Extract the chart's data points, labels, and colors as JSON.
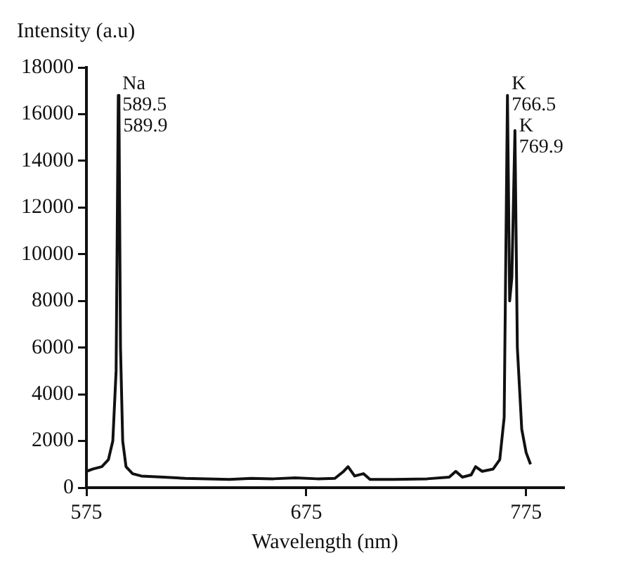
{
  "chart_data": {
    "type": "line",
    "xlabel": "Wavelength (nm)",
    "ylabel": "Intensity (a.u)",
    "series": [
      {
        "color": "#111111",
        "x": [
          575,
          578,
          582,
          585,
          587,
          588.5,
          589.5,
          589.7,
          589.9,
          590.5,
          591.5,
          593,
          596,
          600,
          610,
          620,
          630,
          640,
          650,
          660,
          670,
          680,
          688,
          692,
          694,
          697,
          701,
          704,
          715,
          730,
          740,
          743,
          746,
          750,
          752,
          755,
          760,
          763,
          765,
          766.5,
          767.5,
          768.5,
          769.9,
          771,
          773,
          775,
          777
        ],
        "values": [
          700,
          800,
          900,
          1200,
          2000,
          5000,
          16800,
          12000,
          16300,
          6000,
          2000,
          900,
          600,
          500,
          450,
          400,
          380,
          350,
          400,
          380,
          420,
          380,
          400,
          700,
          900,
          500,
          600,
          350,
          350,
          380,
          450,
          700,
          450,
          550,
          900,
          700,
          800,
          1200,
          3000,
          16800,
          8000,
          9000,
          15300,
          6000,
          2500,
          1500,
          1000
        ]
      }
    ],
    "xlim": [
      575,
      792
    ],
    "xticks": [
      575,
      675,
      775
    ],
    "ylim": [
      0,
      18000
    ],
    "yticks": [
      0,
      2000,
      4000,
      6000,
      8000,
      10000,
      12000,
      14000,
      16000,
      18000
    ],
    "grid": false,
    "legend": false,
    "marker": "none",
    "line_style": "solid",
    "annotations": [
      {
        "text": "Na",
        "x": 589.5,
        "y": 16800
      },
      {
        "text": "589.5",
        "x": 589.5,
        "y": 16800
      },
      {
        "text": "589.9",
        "x": 589.9,
        "y": 16300
      },
      {
        "text": "K",
        "x": 766.5,
        "y": 16800
      },
      {
        "text": "766.5",
        "x": 766.5,
        "y": 16800
      },
      {
        "text": "K",
        "x": 769.9,
        "y": 15300
      },
      {
        "text": "769.9",
        "x": 769.9,
        "y": 15300
      }
    ]
  }
}
